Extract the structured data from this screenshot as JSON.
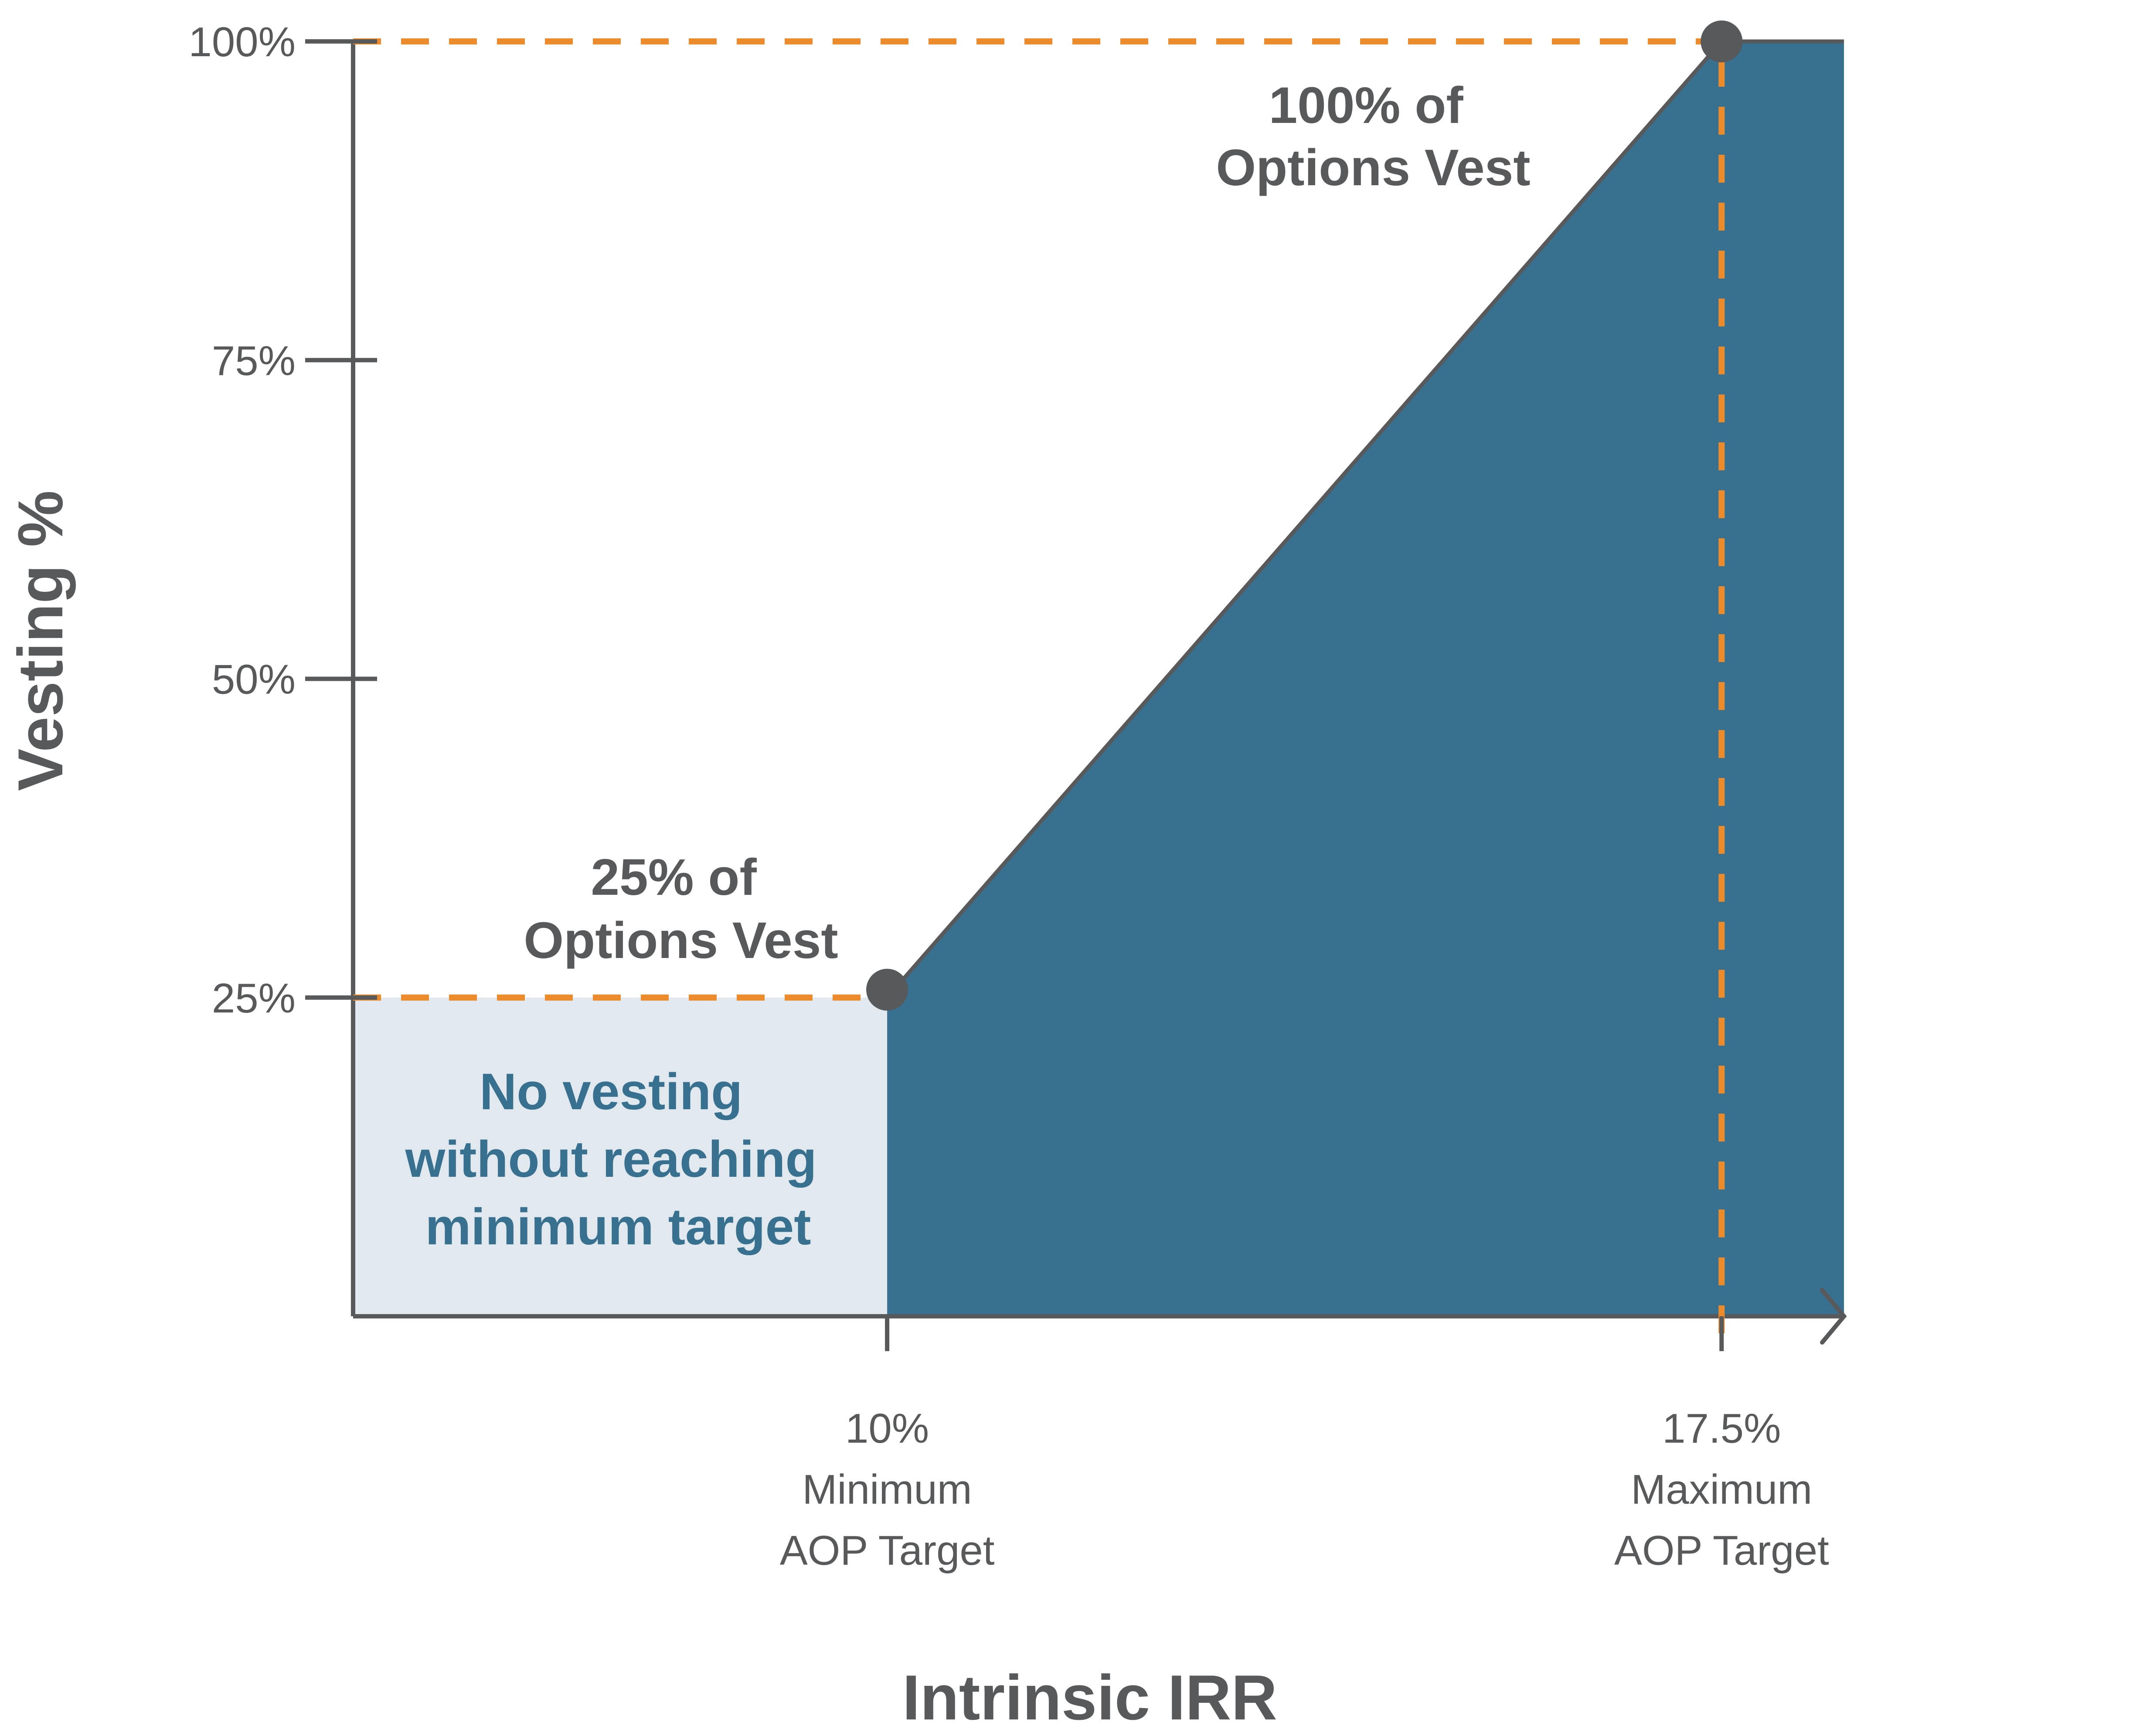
{
  "chart_data": {
    "type": "area",
    "title": "",
    "xlabel": "Intrinsic IRR",
    "ylabel": "Vesting %",
    "ylim": [
      0,
      100
    ],
    "y_ticks": [
      "25%",
      "50%",
      "75%",
      "100%"
    ],
    "y_tick_values": [
      25,
      50,
      75,
      100
    ],
    "x_ticks": [
      {
        "value": 10,
        "label": "10%",
        "line1": "Minimum",
        "line2": "AOP Target"
      },
      {
        "value": 17.5,
        "label": "17.5%",
        "line1": "Maximum",
        "line2": "AOP Target"
      }
    ],
    "x_range_hint": [
      5.2,
      18.6
    ],
    "vesting_curve": [
      {
        "x": 10,
        "y": 25
      },
      {
        "x": 17.5,
        "y": 100
      },
      {
        "x": 18.6,
        "y": 100
      }
    ],
    "key_points": [
      {
        "x": 10,
        "y": 25
      },
      {
        "x": 17.5,
        "y": 100
      }
    ],
    "annotations": {
      "min_point": [
        "25% of",
        "Options Vest"
      ],
      "max_point": [
        "100% of",
        "Options Vest"
      ],
      "no_vesting": [
        "No vesting",
        "without reaching",
        "minimum target"
      ]
    },
    "colors": {
      "area": "#37718f",
      "no_vesting_zone": "#e1e9ee",
      "guides": "#ec8b2c",
      "axis": "#58595b",
      "point": "#58595b"
    },
    "grid": false,
    "legend": "none"
  }
}
